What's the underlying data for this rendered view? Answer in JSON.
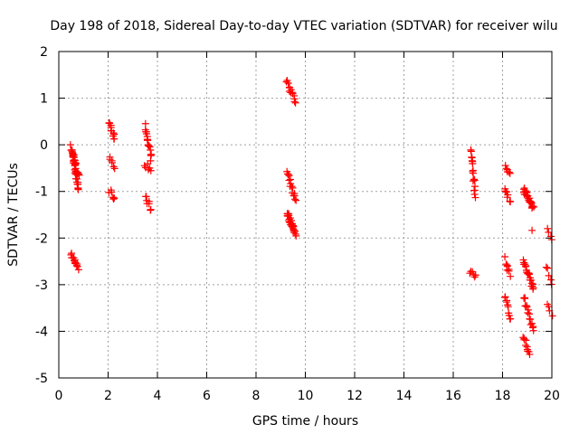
{
  "chart_data": {
    "type": "scatter",
    "title": "Day 198 of 2018, Sidereal Day-to-day VTEC variation (SDTVAR) for receiver wilu",
    "xlabel": "GPS time / hours",
    "ylabel": "SDTVAR / TECUs",
    "xlim": [
      0,
      20
    ],
    "ylim": [
      -5,
      2
    ],
    "xticks": [
      0,
      2,
      4,
      6,
      8,
      10,
      12,
      14,
      16,
      18,
      20
    ],
    "yticks": [
      -5,
      -4,
      -3,
      -2,
      -1,
      0,
      1,
      2
    ],
    "grid": true,
    "marker": "+",
    "color": "#ff0000",
    "series": [
      {
        "name": "SDTVAR",
        "segments": [
          {
            "x0": 0.5,
            "x1": 0.8,
            "y0": -0.05,
            "y1": -0.95,
            "n": 30
          },
          {
            "x0": 0.55,
            "x1": 0.8,
            "y0": -0.15,
            "y1": -0.7,
            "n": 20
          },
          {
            "x0": 0.5,
            "x1": 0.8,
            "y0": -2.3,
            "y1": -2.7,
            "n": 14
          },
          {
            "x0": 2.05,
            "x1": 2.25,
            "y0": 0.5,
            "y1": 0.1,
            "n": 12
          },
          {
            "x0": 2.05,
            "x1": 2.25,
            "y0": -0.25,
            "y1": -0.5,
            "n": 6
          },
          {
            "x0": 2.05,
            "x1": 2.25,
            "y0": -1.0,
            "y1": -1.15,
            "n": 6
          },
          {
            "x0": 3.5,
            "x1": 3.75,
            "y0": 0.4,
            "y1": -0.3,
            "n": 18
          },
          {
            "x0": 3.5,
            "x1": 3.75,
            "y0": -0.4,
            "y1": -0.55,
            "n": 6
          },
          {
            "x0": 3.5,
            "x1": 3.75,
            "y0": -1.1,
            "y1": -1.4,
            "n": 8
          },
          {
            "x0": 9.25,
            "x1": 9.6,
            "y0": 1.4,
            "y1": 0.9,
            "n": 14
          },
          {
            "x0": 9.25,
            "x1": 9.6,
            "y0": -0.6,
            "y1": -1.2,
            "n": 16
          },
          {
            "x0": 9.25,
            "x1": 9.6,
            "y0": -1.45,
            "y1": -1.9,
            "n": 28
          },
          {
            "x0": 16.7,
            "x1": 16.9,
            "y0": -0.1,
            "y1": -1.1,
            "n": 18
          },
          {
            "x0": 16.7,
            "x1": 16.9,
            "y0": -2.7,
            "y1": -2.85,
            "n": 6
          },
          {
            "x0": 18.1,
            "x1": 18.3,
            "y0": -0.5,
            "y1": -0.6,
            "n": 6
          },
          {
            "x0": 18.1,
            "x1": 18.3,
            "y0": -0.9,
            "y1": -1.2,
            "n": 8
          },
          {
            "x0": 18.1,
            "x1": 18.3,
            "y0": -2.45,
            "y1": -2.8,
            "n": 8
          },
          {
            "x0": 18.1,
            "x1": 18.3,
            "y0": -3.25,
            "y1": -3.75,
            "n": 10
          },
          {
            "x0": 18.85,
            "x1": 19.25,
            "y0": -0.95,
            "y1": -1.35,
            "n": 22
          },
          {
            "x0": 18.85,
            "x1": 19.25,
            "y0": -2.45,
            "y1": -3.1,
            "n": 22
          },
          {
            "x0": 18.85,
            "x1": 19.25,
            "y0": -3.25,
            "y1": -4.0,
            "n": 16
          },
          {
            "x0": 18.85,
            "x1": 19.1,
            "y0": -4.1,
            "y1": -4.5,
            "n": 10
          },
          {
            "x0": 19.2,
            "x1": 19.2,
            "y0": -1.85,
            "y1": -1.85,
            "n": 1
          },
          {
            "x0": 19.8,
            "x1": 20.0,
            "y0": -1.85,
            "y1": -2.05,
            "n": 4
          },
          {
            "x0": 19.8,
            "x1": 20.0,
            "y0": -2.6,
            "y1": -2.95,
            "n": 5
          },
          {
            "x0": 19.8,
            "x1": 20.0,
            "y0": -3.4,
            "y1": -3.7,
            "n": 4
          }
        ]
      }
    ]
  }
}
